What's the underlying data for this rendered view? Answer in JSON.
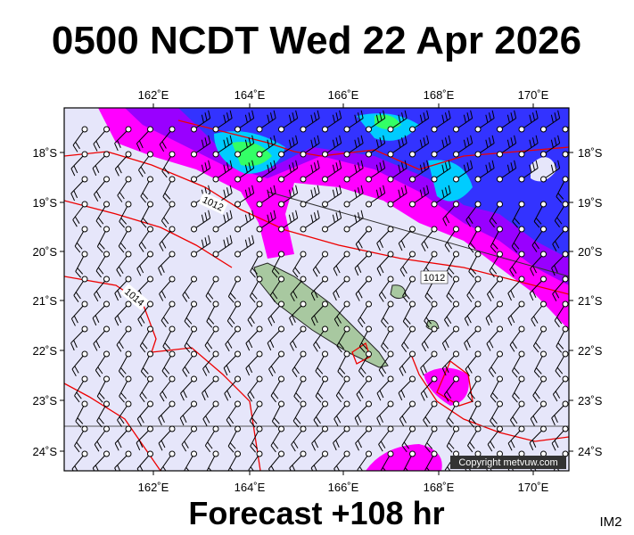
{
  "header": {
    "title": "0500 NCDT Wed 22 Apr 2026"
  },
  "map": {
    "lon_labels": [
      "162˚E",
      "164˚E",
      "166˚E",
      "168˚E",
      "170˚E"
    ],
    "lat_labels": [
      "18˚S",
      "19˚S",
      "20˚S",
      "21˚S",
      "22˚S",
      "23˚S",
      "24˚S"
    ],
    "isobar_labels": [
      "1012",
      "1014",
      "1012"
    ],
    "copyright": "Copyright metvuw.com"
  },
  "footer": {
    "caption": "Forecast +108 hr",
    "code": "IM2"
  }
}
